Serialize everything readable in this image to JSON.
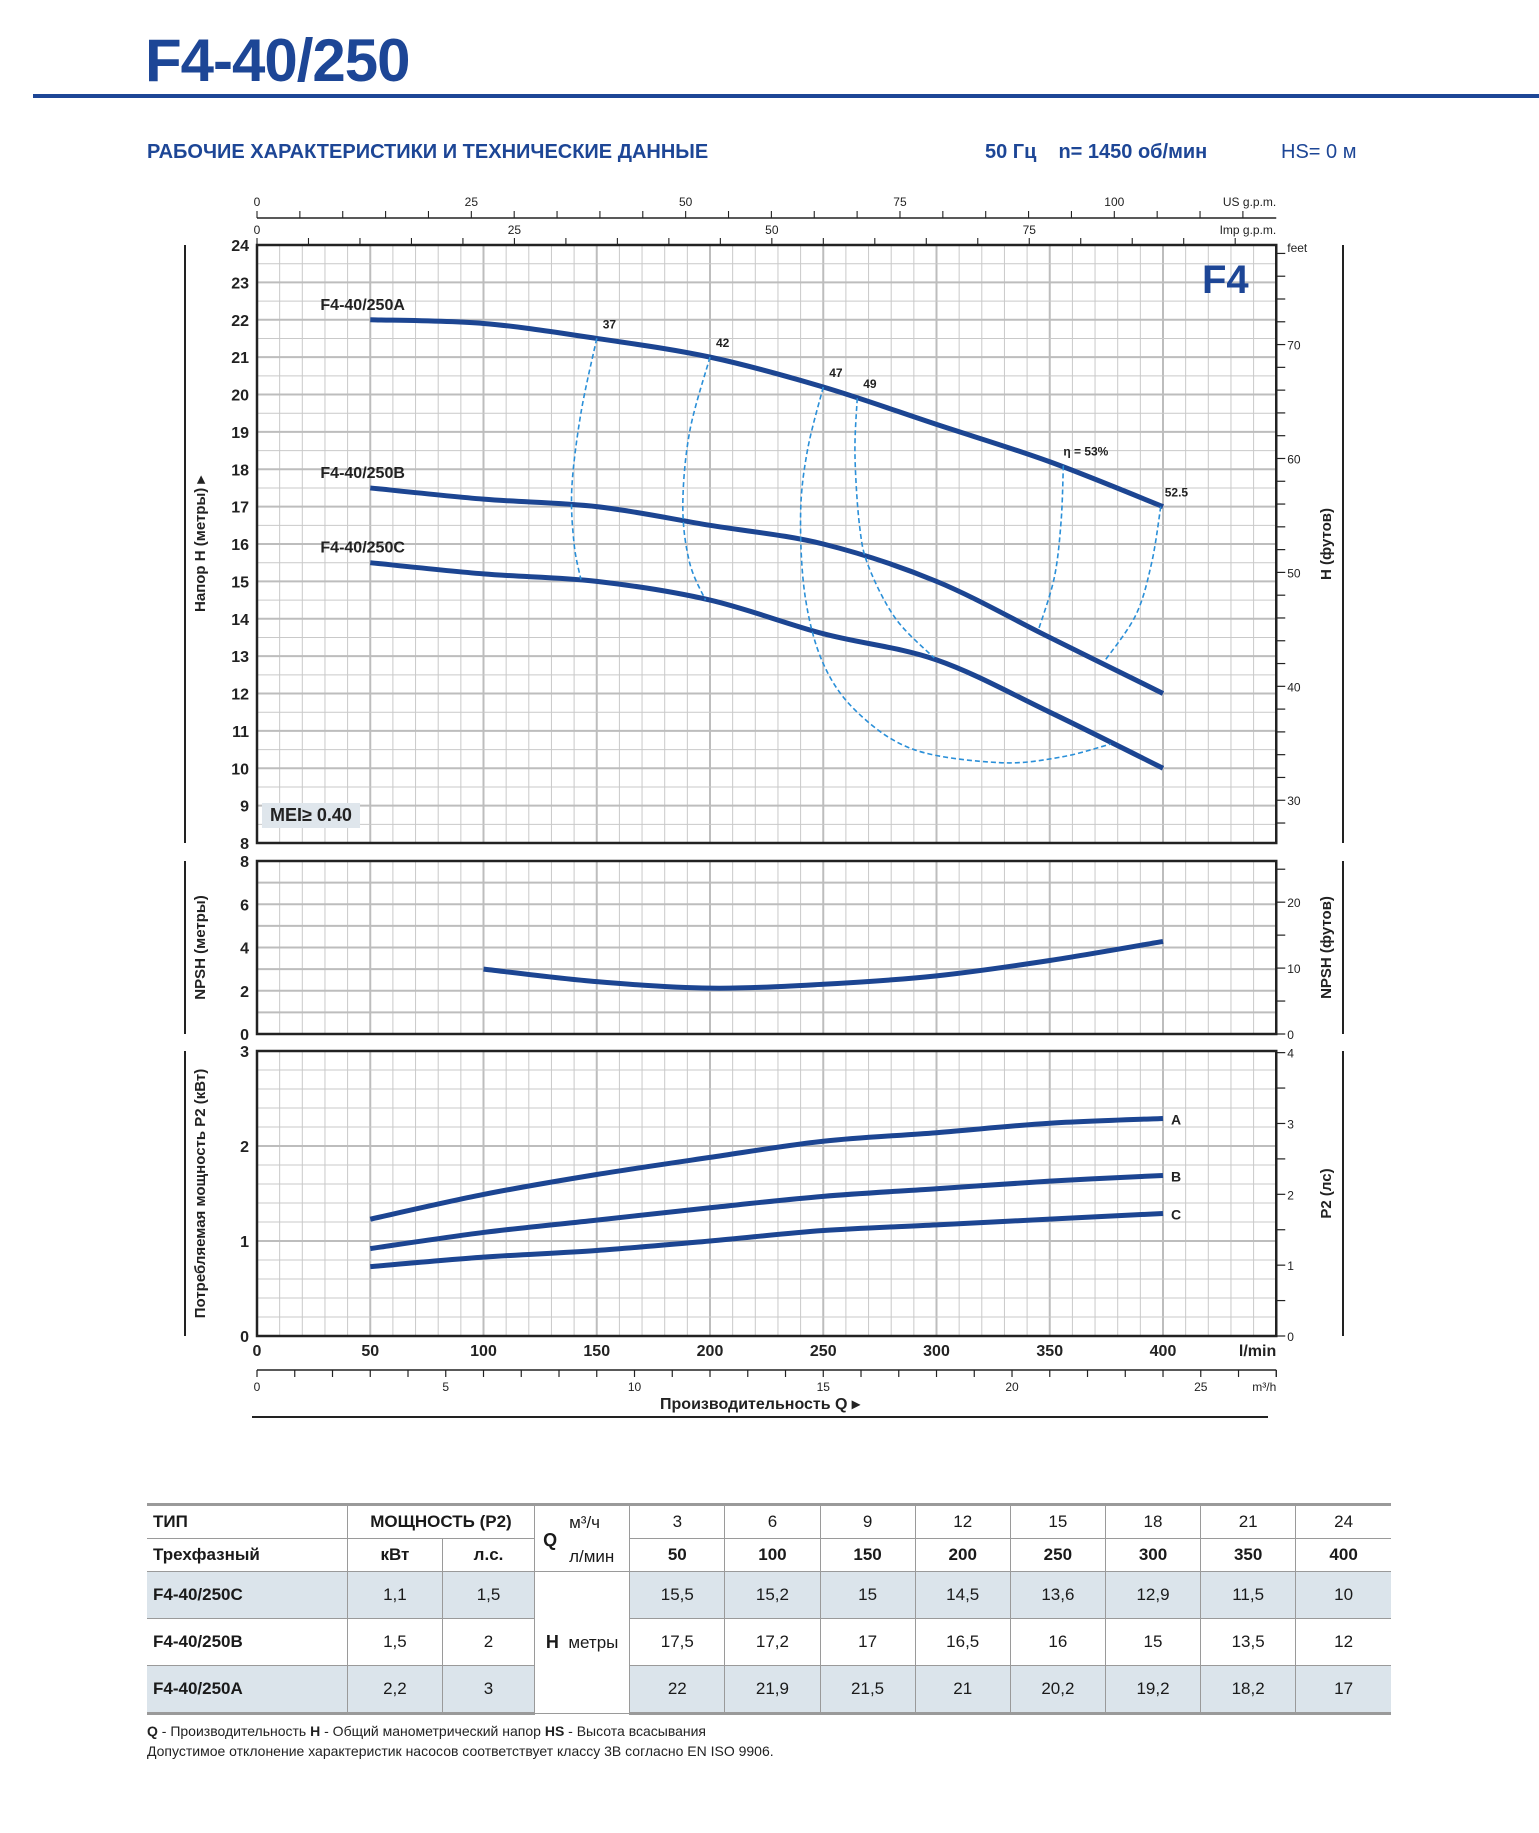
{
  "header": {
    "title": "F4-40/250",
    "section_title": "РАБОЧИЕ ХАРАКТЕРИСТИКИ И ТЕХНИЧЕСКИЕ ДАННЫЕ",
    "frequency": "50 Гц",
    "speed": "n= 1450 об/мин",
    "suction_height": "HS= 0 м"
  },
  "badges": {
    "mei": "MEI≥ 0.40",
    "series": "F4"
  },
  "colors": {
    "brand": "#1d4696",
    "curve": "#1c4592",
    "efficiency": "#2a8fd8",
    "grid": "#c9c9c9",
    "table_shade": "#dbe4eb"
  },
  "chart_data": {
    "type": "line",
    "x": {
      "label": "Производительность Q",
      "unit": "l/min",
      "range": [
        0,
        450
      ],
      "ticks": [
        0,
        50,
        100,
        150,
        200,
        250,
        300,
        350,
        400
      ],
      "m3h": {
        "unit": "m³/h",
        "ticks": [
          0,
          5,
          10,
          15,
          20,
          25
        ]
      },
      "us_gpm": {
        "unit": "US g.p.m.",
        "ticks": [
          0,
          25,
          50,
          75,
          100
        ]
      },
      "imp_gpm": {
        "unit": "Imp g.p.m.",
        "ticks": [
          0,
          25,
          50,
          75
        ]
      }
    },
    "panels": [
      {
        "name": "head",
        "ylabel": "Напор H (метры)",
        "ylim": [
          8,
          24
        ],
        "yticks": [
          8,
          9,
          10,
          11,
          12,
          13,
          14,
          15,
          16,
          17,
          18,
          19,
          20,
          21,
          22,
          23,
          24
        ],
        "y2label": "H (футов)",
        "y2unit": "feet",
        "y2ticks": [
          30,
          40,
          50,
          60,
          70
        ],
        "series": [
          {
            "name": "F4-40/250A",
            "x": [
              50,
              100,
              150,
              200,
              250,
              300,
              350,
              400
            ],
            "y": [
              22,
              21.9,
              21.5,
              21,
              20.2,
              19.2,
              18.2,
              17
            ]
          },
          {
            "name": "F4-40/250B",
            "x": [
              50,
              100,
              150,
              200,
              250,
              300,
              350,
              400
            ],
            "y": [
              17.5,
              17.2,
              17,
              16.5,
              16,
              15,
              13.5,
              12
            ]
          },
          {
            "name": "F4-40/250C",
            "x": [
              50,
              100,
              150,
              200,
              250,
              300,
              350,
              400
            ],
            "y": [
              15.5,
              15.2,
              15,
              14.5,
              13.6,
              12.9,
              11.5,
              10
            ]
          }
        ],
        "efficiency": [
          {
            "label": "37",
            "points": [
              [
                150,
                21.5
              ],
              [
                143,
                19.5
              ],
              [
                139,
                17.5
              ],
              [
                140,
                16
              ],
              [
                143,
                15.05
              ]
            ]
          },
          {
            "label": "42",
            "points": [
              [
                200,
                21
              ],
              [
                191,
                19
              ],
              [
                188,
                17
              ],
              [
                191,
                15.5
              ],
              [
                198,
                14.5
              ]
            ]
          },
          {
            "label": "47",
            "points": [
              [
                250,
                20.2
              ],
              [
                243,
                18.5
              ],
              [
                240,
                16.8
              ],
              [
                242,
                14.6
              ],
              [
                250,
                12.8
              ],
              [
                265,
                11.5
              ],
              [
                290,
                10.5
              ],
              [
                328,
                10.15
              ],
              [
                355,
                10.3
              ],
              [
                377,
                10.65
              ]
            ]
          },
          {
            "label": "49",
            "points": [
              [
                265,
                19.9
              ],
              [
                264,
                18.4
              ],
              [
                266,
                16.5
              ],
              [
                270,
                15.4
              ],
              [
                282,
                14
              ],
              [
                299,
                12.95
              ]
            ]
          },
          {
            "label": "η = 53%",
            "points": [
              [
                356,
                18.1
              ],
              [
                355,
                16.6
              ],
              [
                352,
                15.1
              ],
              [
                345,
                13.7
              ]
            ]
          },
          {
            "label": "52.5",
            "points": [
              [
                399,
                17
              ],
              [
                395,
                15.5
              ],
              [
                388,
                14.1
              ],
              [
                374,
                12.85
              ]
            ]
          }
        ]
      },
      {
        "name": "npsh",
        "ylabel": "NPSH (метры)",
        "ylim": [
          0,
          8
        ],
        "yticks": [
          0,
          2,
          4,
          6,
          8
        ],
        "y2label": "NPSH (футов)",
        "y2ticks": [
          0,
          10,
          20
        ],
        "series": [
          {
            "name": "NPSH",
            "x": [
              100,
              150,
              200,
              250,
              300,
              350,
              400
            ],
            "y": [
              3.0,
              2.42,
              2.12,
              2.3,
              2.69,
              3.4,
              4.28
            ]
          }
        ]
      },
      {
        "name": "power",
        "ylabel": "Потребляемая мощность P2 (кВт)",
        "ylim": [
          0,
          3
        ],
        "yticks": [
          0,
          1,
          2,
          3
        ],
        "y2label": "P2 (лс)",
        "y2ticks": [
          0,
          1,
          2,
          3,
          4
        ],
        "series": [
          {
            "name": "A",
            "x": [
              50,
              100,
              150,
              200,
              250,
              300,
              350,
              400
            ],
            "y": [
              1.23,
              1.49,
              1.7,
              1.88,
              2.05,
              2.14,
              2.24,
              2.29
            ]
          },
          {
            "name": "B",
            "x": [
              50,
              100,
              150,
              200,
              250,
              300,
              350,
              400
            ],
            "y": [
              0.92,
              1.09,
              1.22,
              1.35,
              1.47,
              1.55,
              1.63,
              1.69
            ]
          },
          {
            "name": "C",
            "x": [
              50,
              100,
              150,
              200,
              250,
              300,
              350,
              400
            ],
            "y": [
              0.73,
              0.83,
              0.9,
              1.0,
              1.11,
              1.17,
              1.23,
              1.29
            ]
          }
        ]
      }
    ]
  },
  "table": {
    "type_header": "ТИП",
    "phase_header": "Трехфазный",
    "power_header": "МОЩНОСТЬ (P2)",
    "kw_header": "кВт",
    "hp_header": "л.с.",
    "q_symbol": "Q",
    "q_unit_m3h": "м³/ч",
    "q_unit_lmin": "л/мин",
    "h_symbol": "H",
    "h_unit": "метры",
    "q_m3h": [
      "3",
      "6",
      "9",
      "12",
      "15",
      "18",
      "21",
      "24"
    ],
    "q_lmin": [
      "50",
      "100",
      "150",
      "200",
      "250",
      "300",
      "350",
      "400"
    ],
    "rows": [
      {
        "model": "F4-40/250C",
        "kw": "1,1",
        "hp": "1,5",
        "h": [
          "15,5",
          "15,2",
          "15",
          "14,5",
          "13,6",
          "12,9",
          "11,5",
          "10"
        ]
      },
      {
        "model": "F4-40/250B",
        "kw": "1,5",
        "hp": "2",
        "h": [
          "17,5",
          "17,2",
          "17",
          "16,5",
          "16",
          "15",
          "13,5",
          "12"
        ]
      },
      {
        "model": "F4-40/250A",
        "kw": "2,2",
        "hp": "3",
        "h": [
          "22",
          "21,9",
          "21,5",
          "21",
          "20,2",
          "19,2",
          "18,2",
          "17"
        ]
      }
    ]
  },
  "footnotes": {
    "q_abbr": "Q",
    "q_text": " - Производительность  ",
    "h_abbr": "H",
    "h_text": " - Общий манометрический напор  ",
    "hs_abbr": "HS",
    "hs_text": " - Высота всасывания",
    "tolerance": "Допустимое отклонение характеристик насосов соответствует классу 3B согласно EN ISO 9906."
  }
}
